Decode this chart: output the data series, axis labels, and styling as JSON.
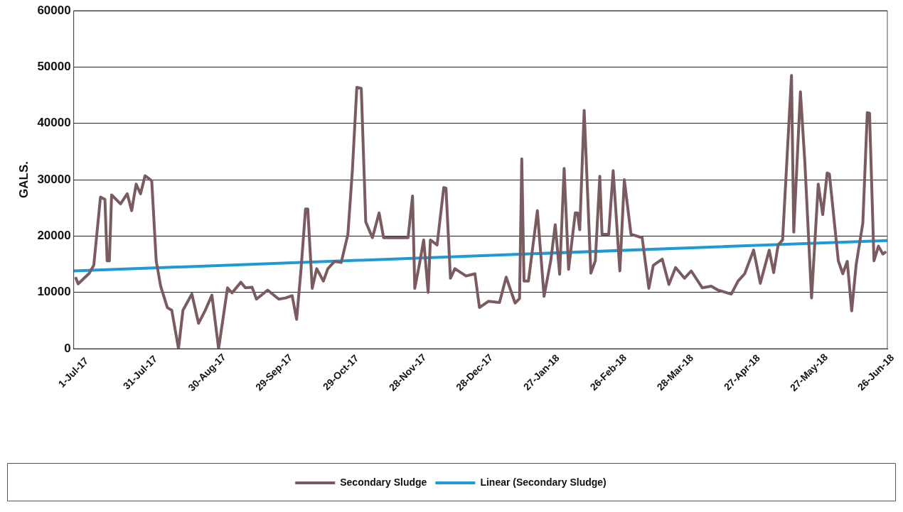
{
  "chart_data": {
    "type": "line",
    "ylabel": "GALS.",
    "xlim": [
      "2017-07-01",
      "2018-07-01"
    ],
    "xticks": [
      {
        "value": "2017-07-01",
        "label": "1-Jul-17"
      },
      {
        "value": "2017-07-31",
        "label": "31-Jul-17"
      },
      {
        "value": "2017-08-30",
        "label": "30-Aug-17"
      },
      {
        "value": "2017-09-29",
        "label": "29-Sep-17"
      },
      {
        "value": "2017-10-29",
        "label": "29-Oct-17"
      },
      {
        "value": "2017-11-28",
        "label": "28-Nov-17"
      },
      {
        "value": "2017-12-28",
        "label": "28-Dec-17"
      },
      {
        "value": "2018-01-27",
        "label": "27-Jan-18"
      },
      {
        "value": "2018-02-26",
        "label": "26-Feb-18"
      },
      {
        "value": "2018-03-28",
        "label": "28-Mar-18"
      },
      {
        "value": "2018-04-27",
        "label": "27-Apr-18"
      },
      {
        "value": "2018-05-27",
        "label": "27-May-18"
      },
      {
        "value": "2018-06-26",
        "label": "26-Jun-18"
      }
    ],
    "ylim": [
      0,
      60000
    ],
    "yticks": [
      0,
      10000,
      20000,
      30000,
      40000,
      50000,
      60000
    ],
    "grid": "y",
    "legend": "bottom",
    "marker": "none",
    "line_style": "solid",
    "series": [
      {
        "name": "Secondary Sludge",
        "color": "#7a5b5f",
        "x": [
          "2017-07-02",
          "2017-07-03",
          "2017-07-08",
          "2017-07-10",
          "2017-07-13",
          "2017-07-15",
          "2017-07-16",
          "2017-07-17",
          "2017-07-18",
          "2017-07-22",
          "2017-07-25",
          "2017-07-27",
          "2017-07-29",
          "2017-07-31",
          "2017-08-02",
          "2017-08-05",
          "2017-08-07",
          "2017-08-09",
          "2017-08-12",
          "2017-08-14",
          "2017-08-17",
          "2017-08-19",
          "2017-08-23",
          "2017-08-26",
          "2017-08-29",
          "2017-09-01",
          "2017-09-04",
          "2017-09-08",
          "2017-09-10",
          "2017-09-14",
          "2017-09-16",
          "2017-09-19",
          "2017-09-21",
          "2017-09-26",
          "2017-10-01",
          "2017-10-04",
          "2017-10-07",
          "2017-10-09",
          "2017-10-11",
          "2017-10-13",
          "2017-10-14",
          "2017-10-16",
          "2017-10-18",
          "2017-10-21",
          "2017-10-23",
          "2017-10-26",
          "2017-10-29",
          "2017-11-01",
          "2017-11-03",
          "2017-11-05",
          "2017-11-07",
          "2017-11-09",
          "2017-11-12",
          "2017-11-15",
          "2017-11-17",
          "2017-11-21",
          "2017-11-28",
          "2017-11-30",
          "2017-12-01",
          "2017-12-03",
          "2017-12-05",
          "2017-12-07",
          "2017-12-08",
          "2017-12-11",
          "2017-12-14",
          "2017-12-15",
          "2017-12-17",
          "2017-12-19",
          "2017-12-24",
          "2017-12-28",
          "2017-12-30",
          "2018-01-03",
          "2018-01-08",
          "2018-01-11",
          "2018-01-15",
          "2018-01-17",
          "2018-01-18",
          "2018-01-19",
          "2018-01-21",
          "2018-01-25",
          "2018-01-28",
          "2018-01-31",
          "2018-02-02",
          "2018-02-04",
          "2018-02-06",
          "2018-02-08",
          "2018-02-11",
          "2018-02-12",
          "2018-02-13",
          "2018-02-15",
          "2018-02-18",
          "2018-02-20",
          "2018-02-22",
          "2018-02-23",
          "2018-02-26",
          "2018-02-28",
          "2018-03-03",
          "2018-03-05",
          "2018-03-08",
          "2018-03-13",
          "2018-03-16",
          "2018-03-18",
          "2018-03-22",
          "2018-03-25",
          "2018-03-28",
          "2018-04-01",
          "2018-04-04",
          "2018-04-09",
          "2018-04-13",
          "2018-04-16",
          "2018-04-22",
          "2018-04-25",
          "2018-04-28",
          "2018-05-02",
          "2018-05-05",
          "2018-05-09",
          "2018-05-11",
          "2018-05-13",
          "2018-05-15",
          "2018-05-19",
          "2018-05-20",
          "2018-05-23",
          "2018-05-25",
          "2018-05-28",
          "2018-05-31",
          "2018-06-02",
          "2018-06-04",
          "2018-06-05",
          "2018-06-09",
          "2018-06-11",
          "2018-06-13",
          "2018-06-15",
          "2018-06-17",
          "2018-06-20",
          "2018-06-22",
          "2018-06-23",
          "2018-06-25",
          "2018-06-27",
          "2018-06-29",
          "2018-06-30"
        ],
        "values": [
          12500,
          11500,
          13400,
          14800,
          26900,
          26500,
          15600,
          15600,
          27300,
          25700,
          27500,
          24500,
          29200,
          27500,
          30700,
          29800,
          15600,
          11100,
          7300,
          6800,
          0,
          6800,
          9700,
          4500,
          6800,
          9500,
          0,
          10800,
          9900,
          11800,
          10800,
          10900,
          8800,
          10400,
          8800,
          9000,
          9400,
          5200,
          14200,
          24800,
          24800,
          10700,
          14200,
          12000,
          14200,
          15500,
          15300,
          20300,
          31600,
          46400,
          46200,
          22500,
          19700,
          24100,
          19700,
          19700,
          19700,
          27100,
          10700,
          14800,
          19300,
          10000,
          19300,
          18400,
          28600,
          28500,
          12500,
          14200,
          12900,
          13300,
          7300,
          8400,
          8200,
          12700,
          8100,
          8900,
          33700,
          12000,
          12000,
          24500,
          9300,
          15600,
          22000,
          13200,
          32000,
          14100,
          24100,
          24100,
          21100,
          42300,
          13400,
          15600,
          30600,
          20300,
          20300,
          31600,
          13800,
          30000,
          20300,
          19700,
          10700,
          14800,
          15900,
          11400,
          14400,
          12500,
          13800,
          10800,
          11100,
          10400,
          9700,
          12000,
          13300,
          17500,
          11600,
          17500,
          13500,
          18400,
          19300,
          48500,
          20700,
          45600,
          33000,
          9000,
          29200,
          23800,
          31200,
          31000,
          15600,
          13300,
          15500,
          6700,
          14900,
          22300,
          41900,
          41800,
          15600,
          18200,
          16800,
          17100
        ]
      },
      {
        "name": "Linear (Secondary Sludge)",
        "color": "#1e9ad6",
        "x": [
          "2017-07-01",
          "2018-07-01"
        ],
        "values": [
          13800,
          19200
        ]
      }
    ]
  }
}
